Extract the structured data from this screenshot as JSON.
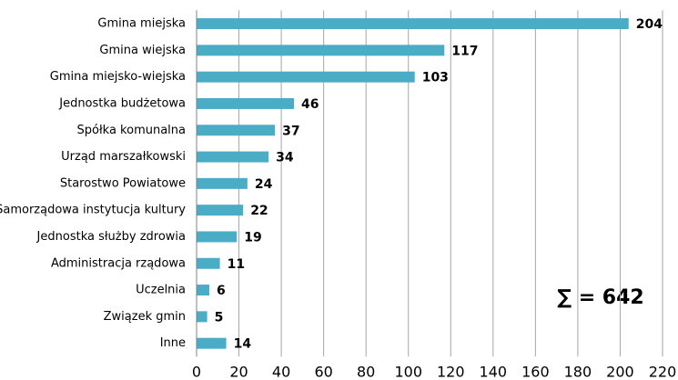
{
  "chart_data": {
    "type": "bar",
    "orientation": "horizontal",
    "categories": [
      "Gmina miejska",
      "Gmina wiejska",
      "Gmina miejsko-wiejska",
      "Jednostka budżetowa",
      "Spółka komunalna",
      "Urząd marszałkowski",
      "Starostwo Powiatowe",
      "Samorządowa instytucja kultury",
      "Jednostka służby zdrowia",
      "Administracja rządowa",
      "Uczelnia",
      "Związek gmin",
      "Inne"
    ],
    "values": [
      204,
      117,
      103,
      46,
      37,
      34,
      24,
      22,
      19,
      11,
      6,
      5,
      14
    ],
    "color": "#4bacc6",
    "xlim": [
      0,
      220
    ],
    "xticks": [
      0,
      20,
      40,
      60,
      80,
      100,
      120,
      140,
      160,
      180,
      200,
      220
    ],
    "grid": true,
    "annotation": "∑ = 642"
  }
}
